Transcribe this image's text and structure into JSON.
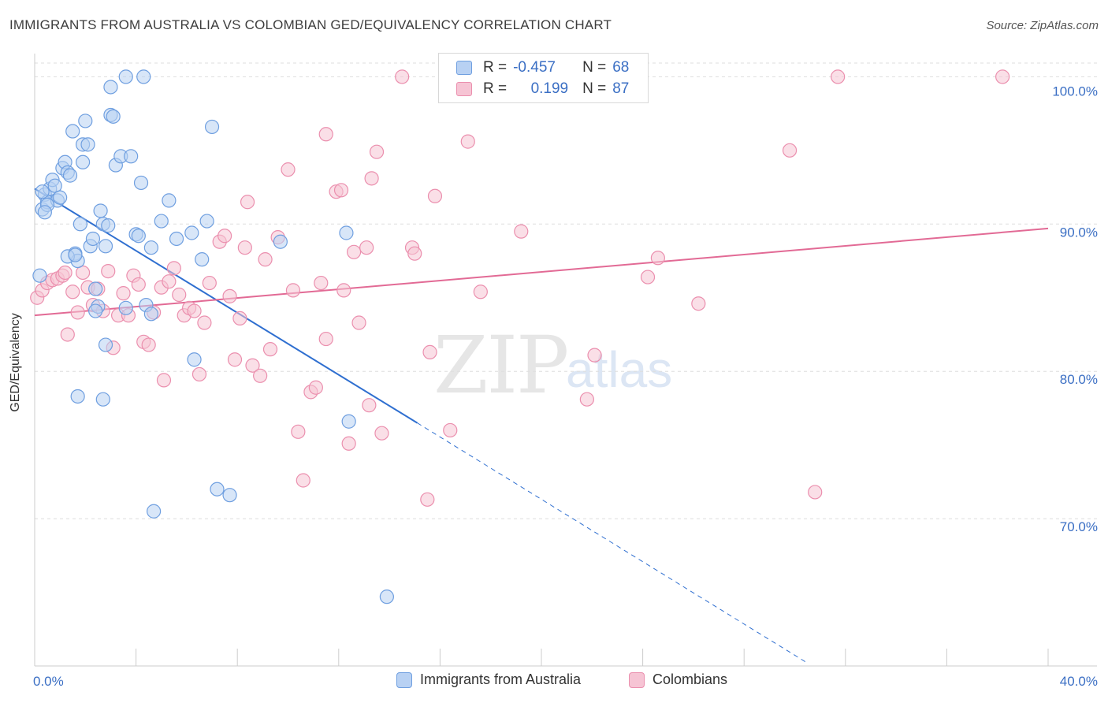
{
  "title": "IMMIGRANTS FROM AUSTRALIA VS COLOMBIAN GED/EQUIVALENCY CORRELATION CHART",
  "source": "Source: ZipAtlas.com",
  "watermark": {
    "zip": "ZIP",
    "atlas": "atlas"
  },
  "legend": {
    "rows": [
      {
        "r_label": "R =",
        "r_value": "-0.457",
        "n_label": "N =",
        "n_value": "68"
      },
      {
        "r_label": "R =",
        "r_value": "0.199",
        "n_label": "N =",
        "n_value": "87"
      }
    ]
  },
  "colors": {
    "blue_fill": "#b8d1f3",
    "blue_stroke": "#6f9fe0",
    "blue_line": "#2f6fd0",
    "pink_fill": "#f6c4d4",
    "pink_stroke": "#eb8fae",
    "pink_line": "#e26a95",
    "grid": "#dddddd",
    "tick_text": "#3b6fc4"
  },
  "chart_data": {
    "type": "scatter",
    "title": "IMMIGRANTS FROM AUSTRALIA VS COLOMBIAN GED/EQUIVALENCY CORRELATION CHART",
    "xlabel": "",
    "ylabel": "GED/Equivalency",
    "xlim": [
      0,
      40
    ],
    "ylim": [
      60,
      102
    ],
    "x_tick_labels": [
      "0.0%",
      "40.0%"
    ],
    "y_ticks": [
      70,
      80,
      90,
      100
    ],
    "y_tick_labels": [
      "70.0%",
      "80.0%",
      "90.0%",
      "100.0%"
    ],
    "grid": true,
    "legend_position": "top-center",
    "series": [
      {
        "name": "Immigrants from Australia",
        "color": "#6f9fe0",
        "trend": {
          "x": [
            0,
            15.1
          ],
          "y": [
            92.4,
            76.5
          ],
          "dashed_to": [
            30.5,
            60.2
          ]
        },
        "points": [
          [
            0.2,
            86.5
          ],
          [
            0.3,
            91
          ],
          [
            0.4,
            92
          ],
          [
            0.5,
            91.5
          ],
          [
            0.6,
            92.4
          ],
          [
            0.7,
            93
          ],
          [
            0.8,
            92.6
          ],
          [
            0.9,
            91.6
          ],
          [
            1.0,
            91.8
          ],
          [
            1.1,
            93.8
          ],
          [
            1.2,
            94.2
          ],
          [
            1.3,
            93.5
          ],
          [
            1.4,
            93.3
          ],
          [
            1.5,
            96.3
          ],
          [
            1.6,
            88
          ],
          [
            1.7,
            87.5
          ],
          [
            1.8,
            90
          ],
          [
            1.9,
            95.4
          ],
          [
            2.0,
            97
          ],
          [
            2.1,
            95.4
          ],
          [
            2.2,
            88.5
          ],
          [
            2.3,
            89
          ],
          [
            2.4,
            85.6
          ],
          [
            2.5,
            84.4
          ],
          [
            2.6,
            90.9
          ],
          [
            2.7,
            90
          ],
          [
            2.8,
            88.5
          ],
          [
            2.9,
            89.9
          ],
          [
            3.0,
            97.4
          ],
          [
            3.1,
            97.3
          ],
          [
            3.0,
            99.3
          ],
          [
            3.2,
            94
          ],
          [
            3.4,
            94.6
          ],
          [
            3.6,
            100
          ],
          [
            4.3,
            100
          ],
          [
            4.2,
            92.8
          ],
          [
            4.0,
            89.3
          ],
          [
            4.1,
            89.2
          ],
          [
            4.6,
            88.4
          ],
          [
            5.3,
            91.6
          ],
          [
            5.0,
            90.2
          ],
          [
            5.6,
            89
          ],
          [
            6.2,
            89.4
          ],
          [
            6.6,
            87.6
          ],
          [
            6.8,
            90.2
          ],
          [
            7.0,
            96.6
          ],
          [
            9.7,
            88.8
          ],
          [
            12.3,
            89.4
          ],
          [
            1.3,
            87.8
          ],
          [
            1.6,
            87.9
          ],
          [
            2.4,
            84.1
          ],
          [
            3.6,
            84.3
          ],
          [
            4.4,
            84.5
          ],
          [
            4.6,
            83.9
          ],
          [
            2.8,
            81.8
          ],
          [
            6.3,
            80.8
          ],
          [
            1.7,
            78.3
          ],
          [
            2.7,
            78.1
          ],
          [
            12.4,
            76.6
          ],
          [
            7.2,
            72
          ],
          [
            7.7,
            71.6
          ],
          [
            4.7,
            70.5
          ],
          [
            13.9,
            64.7
          ],
          [
            0.3,
            92.2
          ],
          [
            0.5,
            91.3
          ],
          [
            0.4,
            90.8
          ],
          [
            3.8,
            94.6
          ],
          [
            1.9,
            94.2
          ]
        ]
      },
      {
        "name": "Colombians",
        "color": "#eb8fae",
        "trend": {
          "x": [
            0,
            40
          ],
          "y": [
            83.8,
            89.7
          ]
        },
        "points": [
          [
            0.1,
            85
          ],
          [
            0.3,
            85.5
          ],
          [
            0.5,
            86
          ],
          [
            0.7,
            86.2
          ],
          [
            0.9,
            86.3
          ],
          [
            1.1,
            86.5
          ],
          [
            1.3,
            82.5
          ],
          [
            1.5,
            85.4
          ],
          [
            1.7,
            84
          ],
          [
            1.9,
            86.7
          ],
          [
            2.1,
            85.7
          ],
          [
            2.3,
            84.5
          ],
          [
            2.5,
            85.6
          ],
          [
            2.7,
            84.1
          ],
          [
            2.9,
            86.8
          ],
          [
            3.1,
            81.6
          ],
          [
            3.3,
            83.8
          ],
          [
            3.5,
            85.3
          ],
          [
            3.7,
            83.8
          ],
          [
            3.9,
            86.5
          ],
          [
            4.1,
            85.9
          ],
          [
            4.3,
            82
          ],
          [
            4.5,
            81.8
          ],
          [
            4.7,
            84
          ],
          [
            5.1,
            79.4
          ],
          [
            5.0,
            85.7
          ],
          [
            5.3,
            86.1
          ],
          [
            5.5,
            87
          ],
          [
            5.7,
            85.2
          ],
          [
            5.9,
            83.8
          ],
          [
            6.1,
            84.3
          ],
          [
            6.3,
            84.1
          ],
          [
            6.5,
            79.8
          ],
          [
            6.7,
            83.3
          ],
          [
            6.9,
            86
          ],
          [
            7.3,
            88.8
          ],
          [
            7.5,
            89.2
          ],
          [
            7.7,
            85.1
          ],
          [
            7.9,
            80.8
          ],
          [
            8.1,
            83.6
          ],
          [
            8.3,
            88.4
          ],
          [
            8.4,
            91.5
          ],
          [
            8.6,
            80.4
          ],
          [
            8.9,
            79.7
          ],
          [
            9.1,
            87.6
          ],
          [
            9.3,
            81.5
          ],
          [
            9.6,
            89.1
          ],
          [
            10.0,
            93.7
          ],
          [
            10.2,
            85.5
          ],
          [
            10.4,
            75.9
          ],
          [
            10.6,
            72.6
          ],
          [
            10.9,
            78.6
          ],
          [
            11.1,
            78.9
          ],
          [
            11.3,
            86
          ],
          [
            11.5,
            82.2
          ],
          [
            11.5,
            96.1
          ],
          [
            11.9,
            92.2
          ],
          [
            12.1,
            92.3
          ],
          [
            12.2,
            85.5
          ],
          [
            12.4,
            75.1
          ],
          [
            12.6,
            88.1
          ],
          [
            12.8,
            83.3
          ],
          [
            13.1,
            88.4
          ],
          [
            13.2,
            77.7
          ],
          [
            13.3,
            93.1
          ],
          [
            13.5,
            94.9
          ],
          [
            13.7,
            75.8
          ],
          [
            14.5,
            100
          ],
          [
            14.9,
            88.4
          ],
          [
            15.0,
            88
          ],
          [
            15.5,
            71.3
          ],
          [
            15.6,
            81.3
          ],
          [
            15.8,
            91.9
          ],
          [
            16.4,
            76
          ],
          [
            17.1,
            95.6
          ],
          [
            17.6,
            85.4
          ],
          [
            19.2,
            89.5
          ],
          [
            21.8,
            78.1
          ],
          [
            22.1,
            81.1
          ],
          [
            24.2,
            86.4
          ],
          [
            24.6,
            87.7
          ],
          [
            26.2,
            84.6
          ],
          [
            29.8,
            95
          ],
          [
            30.8,
            71.8
          ],
          [
            31.7,
            100
          ],
          [
            38.2,
            100
          ],
          [
            1.2,
            86.7
          ]
        ]
      }
    ]
  }
}
